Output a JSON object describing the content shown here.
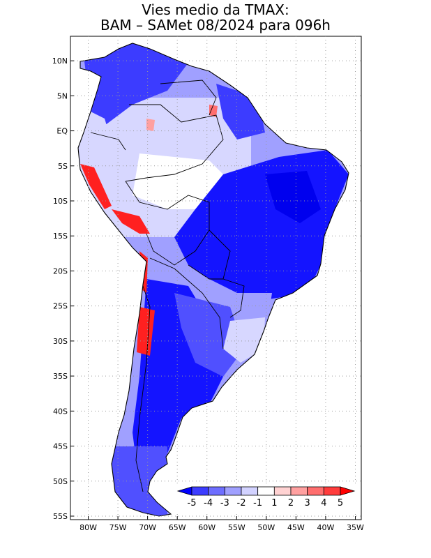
{
  "title": {
    "line1": "Vies medio da TMAX:",
    "line2": "BAM – SAMet 08/2024  para 096h"
  },
  "axes": {
    "lat_labels": [
      "10N",
      "5N",
      "EQ",
      "5S",
      "10S",
      "15S",
      "20S",
      "25S",
      "30S",
      "35S",
      "40S",
      "45S",
      "50S",
      "55S"
    ],
    "lat_values": [
      10,
      5,
      0,
      -5,
      -10,
      -15,
      -20,
      -25,
      -30,
      -35,
      -40,
      -45,
      -50,
      -55
    ],
    "lon_labels": [
      "80W",
      "75W",
      "70W",
      "65W",
      "60W",
      "55W",
      "50W",
      "45W",
      "40W",
      "35W"
    ],
    "lon_values": [
      -80,
      -75,
      -70,
      -65,
      -60,
      -55,
      -50,
      -45,
      -40,
      -35
    ],
    "lat_range": [
      -55.5,
      13.5
    ],
    "lon_range": [
      -83,
      -34
    ]
  },
  "colorbar": {
    "labels": [
      "-5",
      "-4",
      "-3",
      "-2",
      "-1",
      "1",
      "2",
      "3",
      "4",
      "5"
    ],
    "boundaries": [
      -5,
      -4,
      -3,
      -2,
      -1,
      1,
      2,
      3,
      4,
      5
    ],
    "colors": [
      "#0000ff",
      "#3c3cff",
      "#6e6eff",
      "#a0a0ff",
      "#d2d2ff",
      "#ffffff",
      "#ffd2d2",
      "#ffa0a0",
      "#ff6e6e",
      "#ff3c3c",
      "#ff0000"
    ]
  },
  "colors": {
    "strong_cold": "#1414ff",
    "medium_cold": "#5050ff",
    "light_cold": "#a0a0ff",
    "very_light_cold": "#d7d7ff",
    "warm": "#ff2020",
    "grid": "#9a9a9a"
  }
}
